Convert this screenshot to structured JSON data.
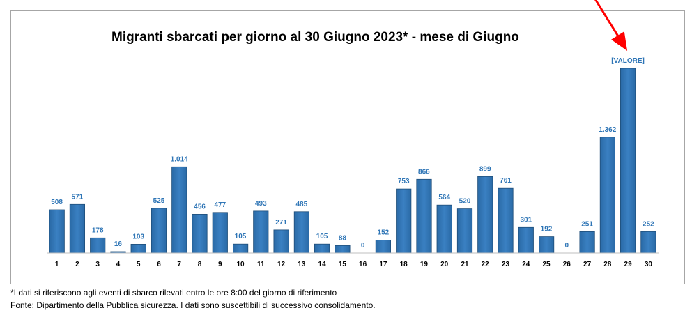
{
  "chart_data": {
    "type": "bar",
    "title": "Migranti sbarcati per giorno al 30 Giugno 2023* - mese di Giugno",
    "xlabel": "",
    "ylabel": "",
    "categories": [
      "1",
      "2",
      "3",
      "4",
      "5",
      "6",
      "7",
      "8",
      "9",
      "10",
      "11",
      "12",
      "13",
      "14",
      "15",
      "16",
      "17",
      "18",
      "19",
      "20",
      "21",
      "22",
      "23",
      "24",
      "25",
      "26",
      "27",
      "28",
      "29",
      "30"
    ],
    "values": [
      508,
      571,
      178,
      16,
      103,
      525,
      1014,
      456,
      477,
      105,
      493,
      271,
      485,
      105,
      88,
      0,
      152,
      753,
      866,
      564,
      520,
      899,
      761,
      301,
      192,
      0,
      251,
      1362,
      2172,
      252
    ],
    "data_labels": [
      "508",
      "571",
      "178",
      "16",
      "103",
      "525",
      "1.014",
      "456",
      "477",
      "105",
      "493",
      "271",
      "485",
      "105",
      "88",
      "0",
      "152",
      "753",
      "866",
      "564",
      "520",
      "899",
      "761",
      "301",
      "192",
      "0",
      "251",
      "1.362",
      "[VALORE]",
      "252"
    ],
    "ylim": [
      0,
      2500
    ],
    "grid": false,
    "legend": "none",
    "bar_color": "#2e75b6",
    "label_color": "#2e75b6",
    "annotation": {
      "type": "arrow",
      "target_category": "29",
      "color": "#ff0000"
    }
  },
  "footnotes": {
    "note": "*I dati si riferiscono agli eventi di sbarco rilevati entro le ore 8:00 del giorno di riferimento",
    "source": "Fonte: Dipartimento della Pubblica sicurezza. I dati sono suscettibili di successivo consolidamento."
  }
}
